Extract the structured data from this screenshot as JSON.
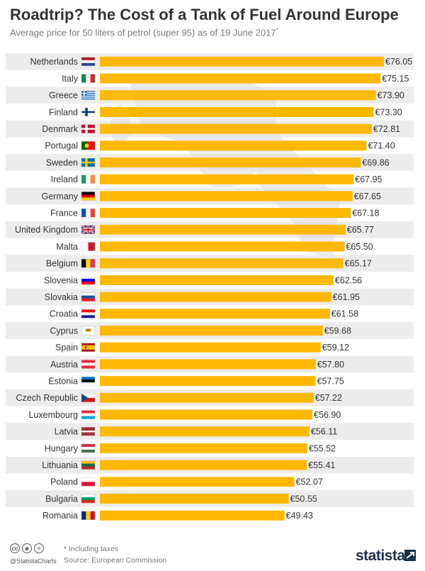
{
  "header": {
    "title": "Roadtrip? The Cost of a Tank of Fuel Around Europe",
    "subtitle": "Average price for 50 liters of petrol (super 95) as of 19 June 2017",
    "subtitle_mark": "*"
  },
  "colors": {
    "bar": "#ffb800",
    "row_band": "#ececec",
    "watermark": "#dedede"
  },
  "chart_data": {
    "type": "bar",
    "orientation": "horizontal",
    "value_prefix": "€",
    "categories": [
      "Netherlands",
      "Italy",
      "Greece",
      "Finland",
      "Denmark",
      "Portugal",
      "Sweden",
      "Ireland",
      "Germany",
      "France",
      "United Kingdom",
      "Malta",
      "Belgium",
      "Slovenia",
      "Slovakia",
      "Croatia",
      "Cyprus",
      "Spain",
      "Austria",
      "Estonia",
      "Czech Republic",
      "Luxembourg",
      "Latvia",
      "Hungary",
      "Lithuania",
      "Poland",
      "Bulgaria",
      "Romania"
    ],
    "values": [
      76.05,
      75.15,
      73.9,
      73.3,
      72.81,
      71.4,
      69.86,
      67.95,
      67.65,
      67.18,
      65.77,
      65.5,
      65.17,
      62.56,
      61.95,
      61.58,
      59.68,
      59.12,
      57.8,
      57.75,
      57.22,
      56.9,
      56.11,
      55.52,
      55.41,
      52.07,
      50.55,
      49.43
    ],
    "value_labels": [
      "€76.05",
      "€75.15",
      "€73.90",
      "€73.30",
      "€72.81",
      "€71.40",
      "€69.86",
      "€67.95",
      "€67.65",
      "€67.18",
      "€65.77",
      "€65.50",
      "€65.17",
      "€62.56",
      "€61.95",
      "€61.58",
      "€59.68",
      "€59.12",
      "€57.80",
      "€57.75",
      "€57.22",
      "€56.90",
      "€56.11",
      "€55.52",
      "€55.41",
      "€52.07",
      "€50.55",
      "€49.43"
    ],
    "flag_icons": [
      "netherlands-flag-icon",
      "italy-flag-icon",
      "greece-flag-icon",
      "finland-flag-icon",
      "denmark-flag-icon",
      "portugal-flag-icon",
      "sweden-flag-icon",
      "ireland-flag-icon",
      "germany-flag-icon",
      "france-flag-icon",
      "united-kingdom-flag-icon",
      "malta-flag-icon",
      "belgium-flag-icon",
      "slovenia-flag-icon",
      "slovakia-flag-icon",
      "croatia-flag-icon",
      "cyprus-flag-icon",
      "spain-flag-icon",
      "austria-flag-icon",
      "estonia-flag-icon",
      "czech-republic-flag-icon",
      "luxembourg-flag-icon",
      "latvia-flag-icon",
      "hungary-flag-icon",
      "lithuania-flag-icon",
      "poland-flag-icon",
      "bulgaria-flag-icon",
      "romania-flag-icon"
    ],
    "xlim": [
      0,
      76.05
    ],
    "grid": false,
    "legend": "none"
  },
  "footer": {
    "note": "* Including taxes",
    "source": "Source: European Commission",
    "handle": "@StatistaCharts",
    "brand": "statista",
    "license_icons": [
      "cc-icon",
      "by-icon",
      "nd-icon"
    ]
  }
}
